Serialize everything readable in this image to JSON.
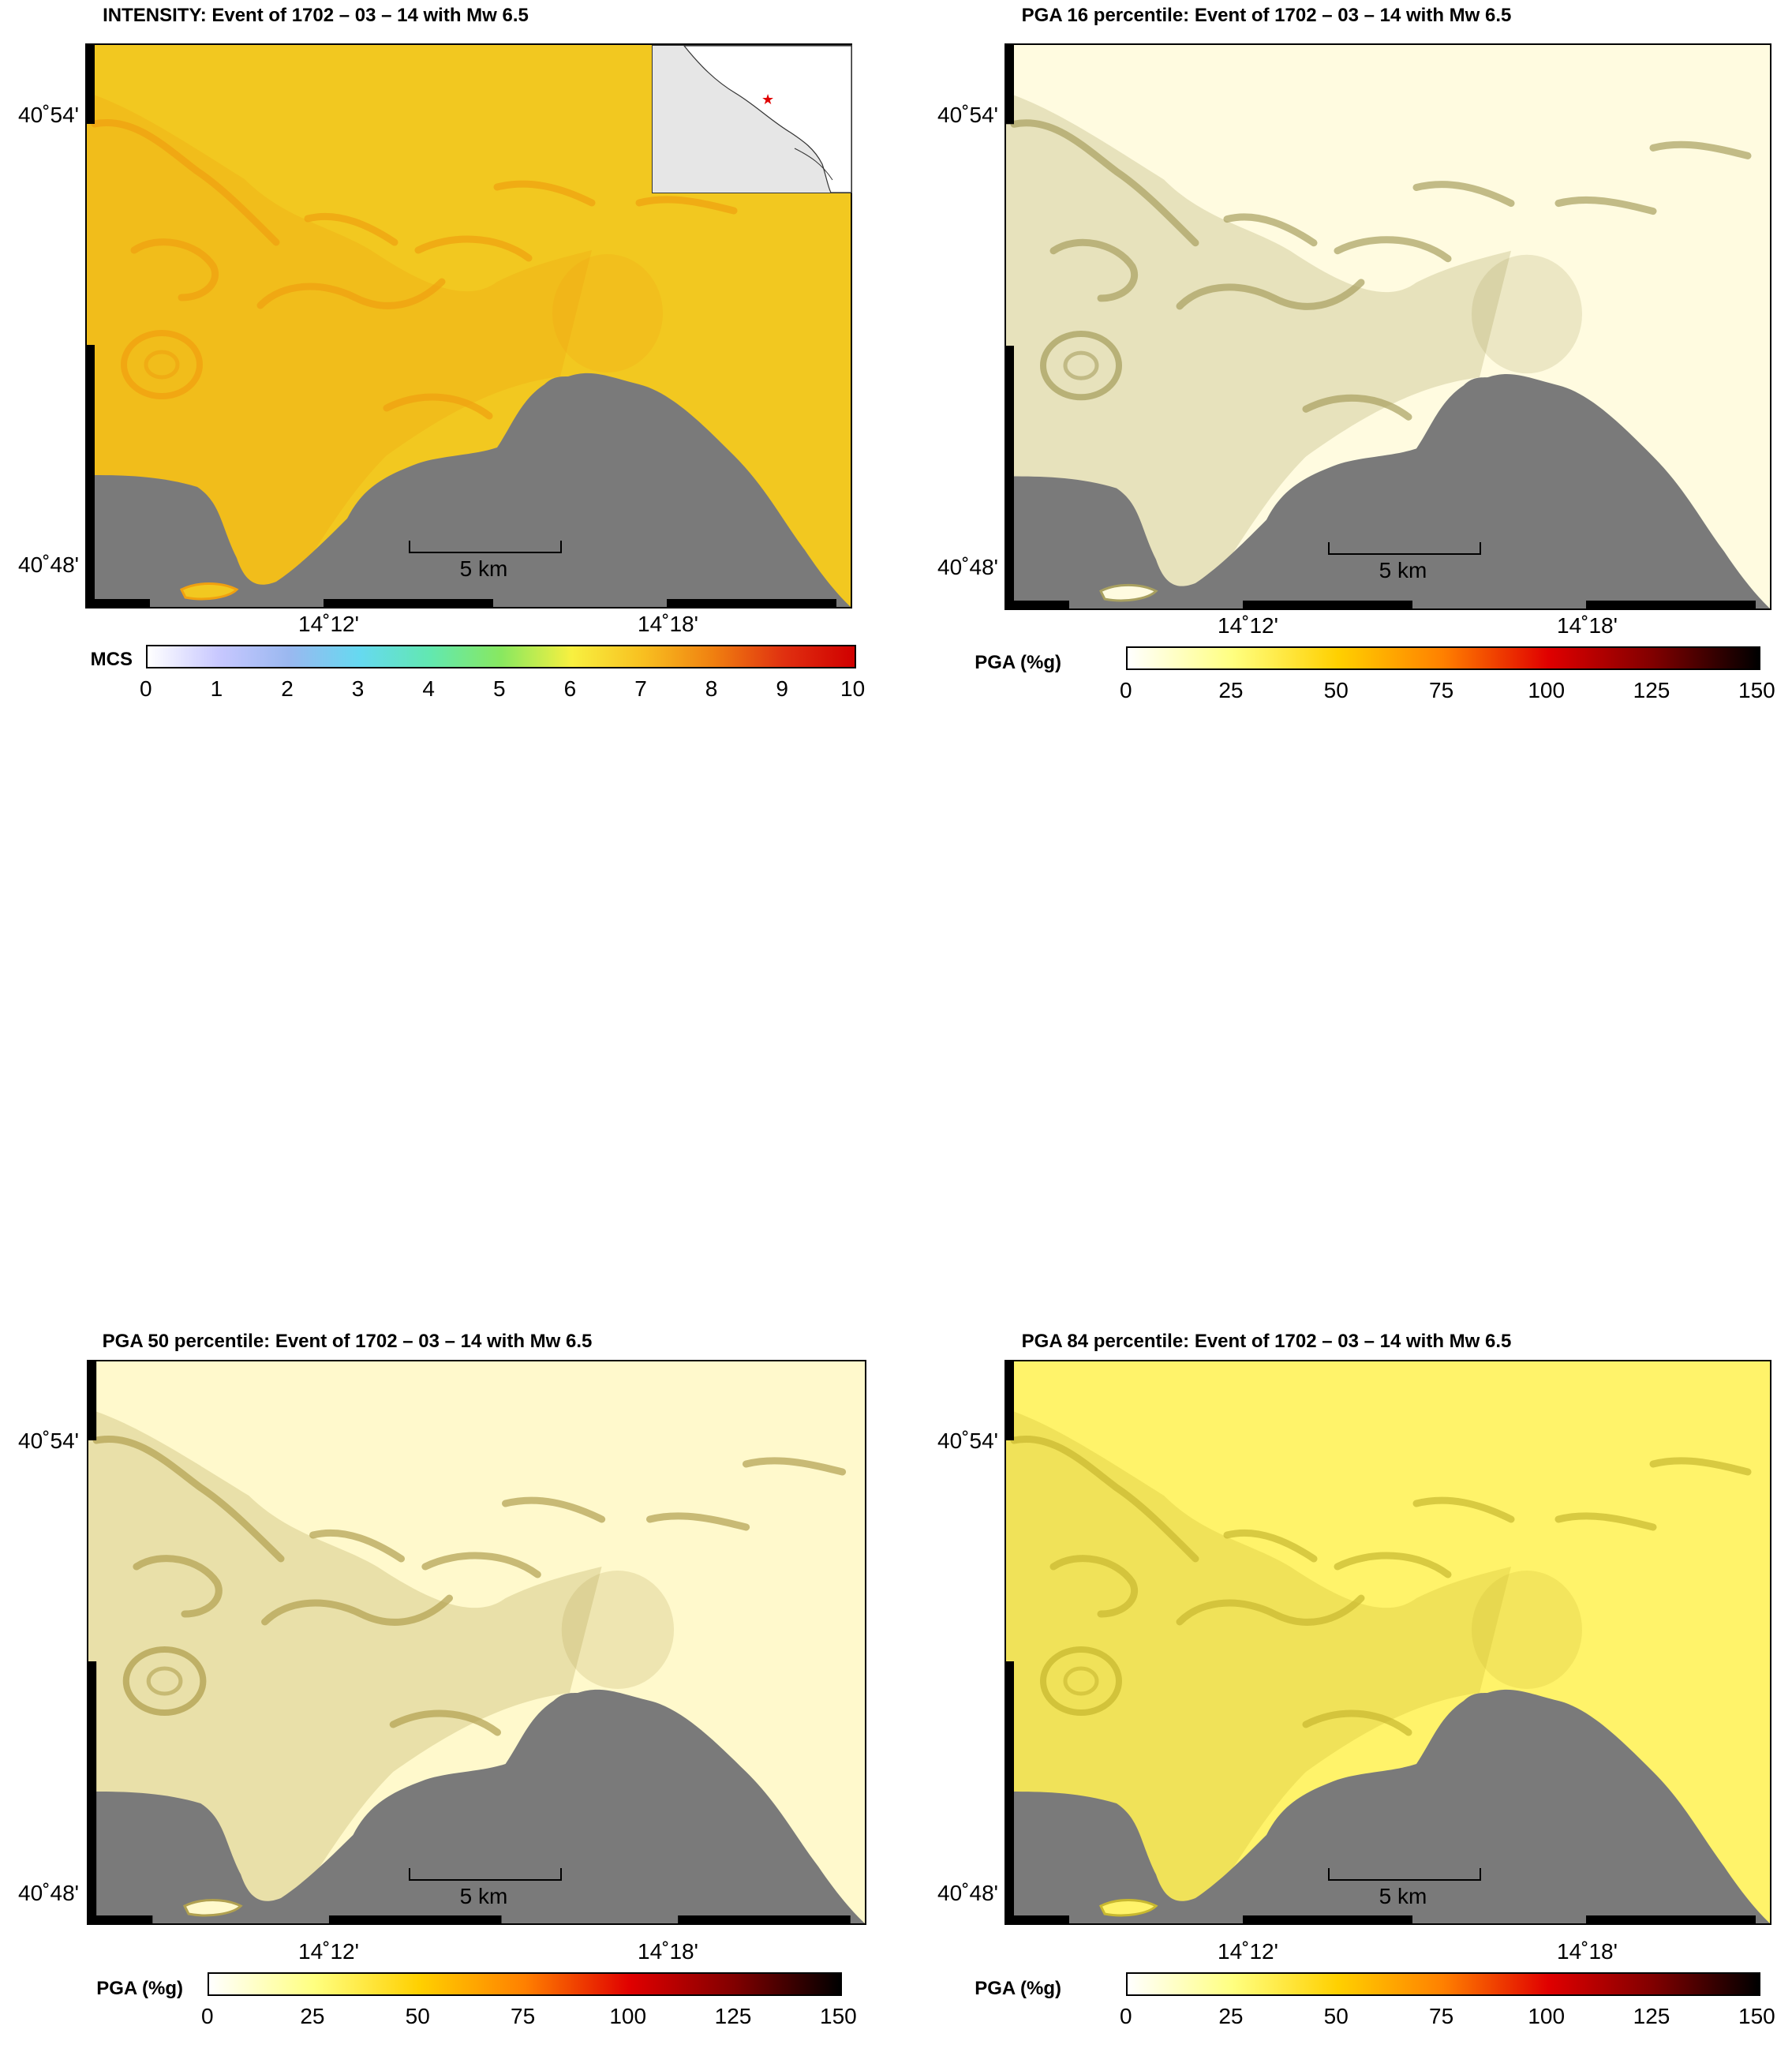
{
  "panels": [
    {
      "id": "intensity",
      "title": "INTENSITY: Event of 1702 – 03 – 14 with Mw 6.5",
      "land_color": "#f2c820",
      "tint": "#f0a010",
      "colorbar": {
        "label": "MCS",
        "ticks": [
          "0",
          "1",
          "2",
          "3",
          "4",
          "5",
          "6",
          "7",
          "8",
          "9",
          "10"
        ],
        "stops": [
          "#ffffff",
          "#c8c8ff",
          "#9ab8f0",
          "#66d9f0",
          "#62e8b0",
          "#88e860",
          "#f8f040",
          "#f8c020",
          "#f08010",
          "#e03010",
          "#d00000"
        ]
      },
      "has_inset": true
    },
    {
      "id": "pga16",
      "title": "PGA 16 percentile: Event of 1702 – 03 – 14 with Mw 6.5",
      "land_color": "#fffbe0",
      "tint": "#a8a060",
      "colorbar": {
        "label": "PGA (%g)",
        "ticks": [
          "0",
          "25",
          "50",
          "75",
          "100",
          "125",
          "150"
        ],
        "stops": [
          "#ffffff",
          "#ffff80",
          "#ffd000",
          "#ff8000",
          "#e00000",
          "#800000",
          "#000000"
        ]
      },
      "has_inset": false
    },
    {
      "id": "pga50",
      "title": "PGA 50 percentile: Event of 1702 – 03 – 14 with Mw 6.5",
      "land_color": "#fff9cc",
      "tint": "#b0a050",
      "colorbar": {
        "label": "PGA (%g)",
        "ticks": [
          "0",
          "25",
          "50",
          "75",
          "100",
          "125",
          "150"
        ],
        "stops": [
          "#ffffff",
          "#ffff80",
          "#ffd000",
          "#ff8000",
          "#e00000",
          "#800000",
          "#000000"
        ]
      },
      "has_inset": false
    },
    {
      "id": "pga84",
      "title": "PGA 84 percentile: Event of 1702 – 03 – 14 with Mw 6.5",
      "land_color": "#fff36a",
      "tint": "#c8b830",
      "colorbar": {
        "label": "PGA (%g)",
        "ticks": [
          "0",
          "25",
          "50",
          "75",
          "100",
          "125",
          "150"
        ],
        "stops": [
          "#ffffff",
          "#ffff80",
          "#ffd000",
          "#ff8000",
          "#e00000",
          "#800000",
          "#000000"
        ]
      },
      "has_inset": false
    }
  ],
  "axes": {
    "lat_labels": [
      "40˚54'",
      "40˚48'"
    ],
    "lon_labels": [
      "14˚12'",
      "14˚18'"
    ]
  },
  "scale_label": "5 km",
  "sea_color": "#7a7a7a",
  "epicenter_marker": "red-star"
}
